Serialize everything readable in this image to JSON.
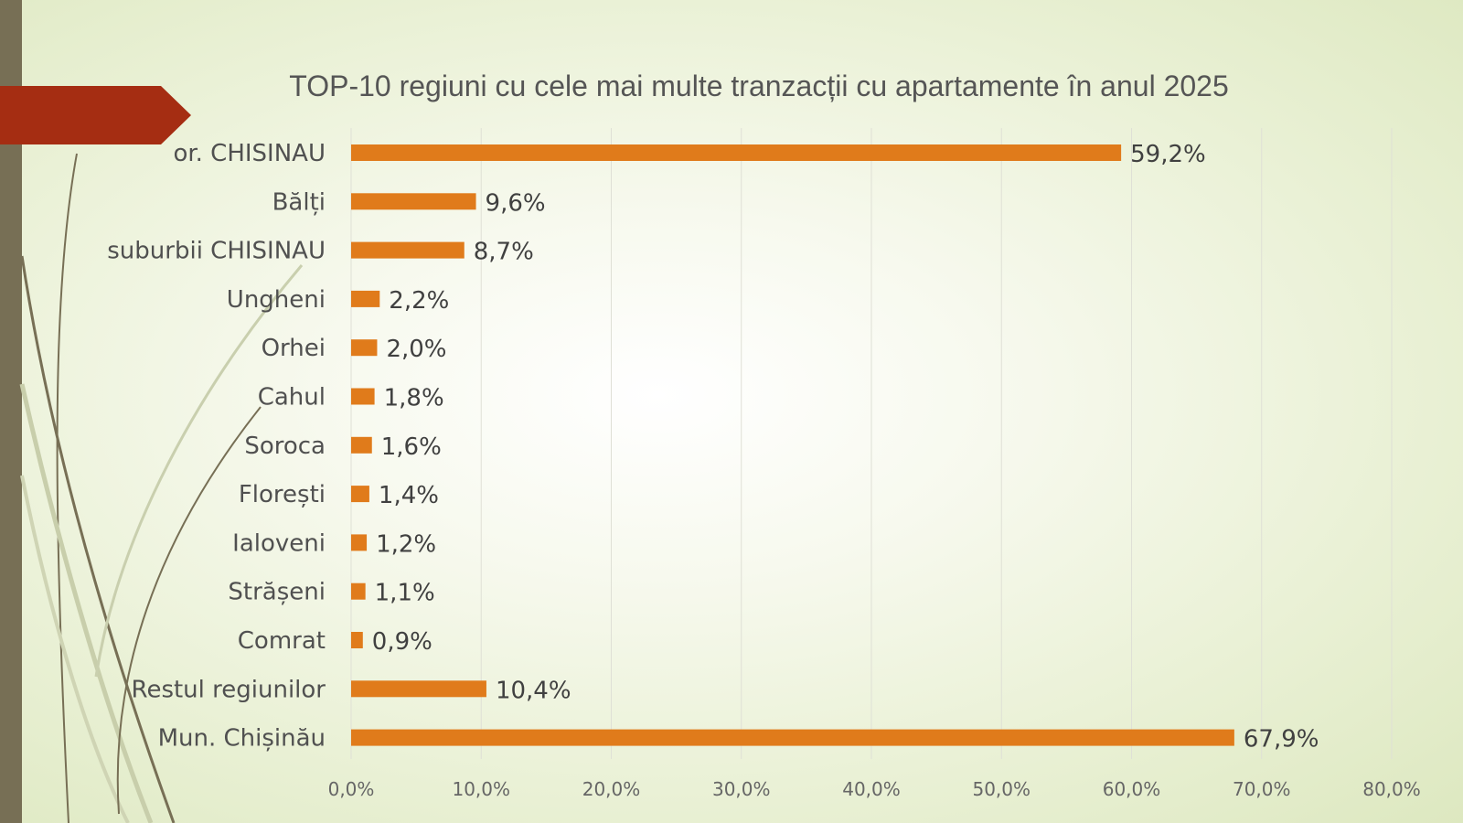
{
  "chart_data": {
    "type": "bar",
    "orientation": "horizontal",
    "title": "TOP-10 regiuni cu cele mai multe tranzacții cu apartamente în anul 2025",
    "categories": [
      "or. CHISINAU",
      "Bălți",
      "suburbii CHISINAU",
      "Ungheni",
      "Orhei",
      "Cahul",
      "Soroca",
      "Florești",
      "Ialoveni",
      "Strășeni",
      "Comrat",
      "Restul regiunilor",
      "Mun. Chișinău"
    ],
    "values": [
      59.2,
      9.6,
      8.7,
      2.2,
      2.0,
      1.8,
      1.6,
      1.4,
      1.2,
      1.1,
      0.9,
      10.4,
      67.9
    ],
    "value_labels": [
      "59,2%",
      "9,6%",
      "8,7%",
      "2,2%",
      "2,0%",
      "1,8%",
      "1,6%",
      "1,4%",
      "1,2%",
      "1,1%",
      "0,9%",
      "10,4%",
      "67,9%"
    ],
    "x_ticks": [
      "0,0%",
      "10,0%",
      "20,0%",
      "30,0%",
      "40,0%",
      "50,0%",
      "60,0%",
      "70,0%",
      "80,0%"
    ],
    "xlim": [
      0,
      80
    ],
    "xlabel": "",
    "ylabel": "",
    "grid": "vertical",
    "legend": "none",
    "bar_color": "#e07b1b"
  },
  "theme": {
    "accent": "#a52d12",
    "sidebar": "#776f55",
    "gridline": "#dfe0d6"
  }
}
